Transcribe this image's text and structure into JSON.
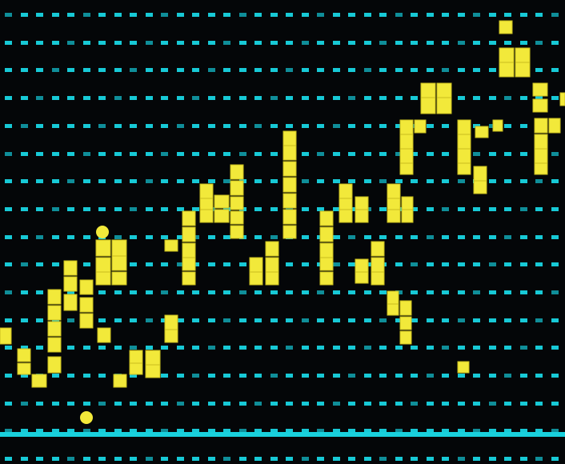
{
  "image": {
    "description_visible": "",
    "colors": {
      "background": "#040608",
      "grid_dot": "#17c9d6",
      "grid_dot_dim": "#0f8e99",
      "baseline": "#19d0dc",
      "block": "#f2e93a",
      "block_edge": "#c9bd1f"
    }
  }
}
